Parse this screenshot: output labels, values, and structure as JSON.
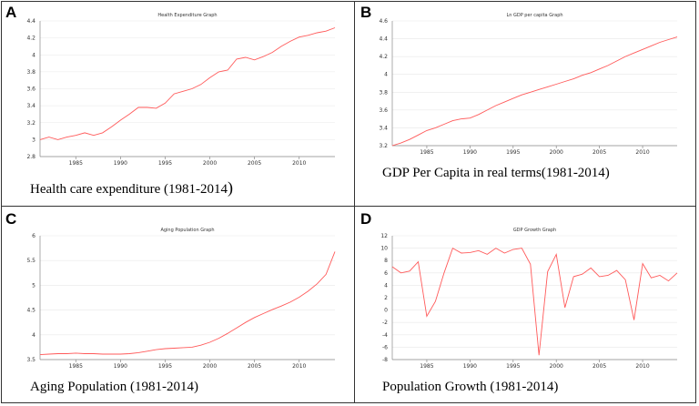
{
  "colors": {
    "line": "#ff5a5a",
    "axis": "#888888",
    "grid": "#e8e8e8",
    "border": "#333333"
  },
  "chart_data": [
    {
      "id": "A",
      "type": "line",
      "label": "A",
      "title": "Health Expenditure Graph",
      "caption_main": "Health care expenditure (1981-2014",
      "caption_tail": ")",
      "xlim": [
        1981,
        2014
      ],
      "ylim": [
        2.8,
        4.4
      ],
      "xticks": [
        1985,
        1990,
        1995,
        2000,
        2005,
        2010
      ],
      "yticks": [
        "2.8",
        "3",
        "3.2",
        "3.4",
        "3.6",
        "3.8",
        "4",
        "4.2",
        "4.4"
      ],
      "ytick_values": [
        2.8,
        3.0,
        3.2,
        3.4,
        3.6,
        3.8,
        4.0,
        4.2,
        4.4
      ],
      "x": [
        1981,
        1982,
        1983,
        1984,
        1985,
        1986,
        1987,
        1988,
        1989,
        1990,
        1991,
        1992,
        1993,
        1994,
        1995,
        1996,
        1997,
        1998,
        1999,
        2000,
        2001,
        2002,
        2003,
        2004,
        2005,
        2006,
        2007,
        2008,
        2009,
        2010,
        2011,
        2012,
        2013,
        2014
      ],
      "y": [
        3.0,
        3.03,
        3.0,
        3.03,
        3.05,
        3.08,
        3.05,
        3.08,
        3.15,
        3.23,
        3.3,
        3.38,
        3.38,
        3.37,
        3.43,
        3.54,
        3.57,
        3.6,
        3.65,
        3.73,
        3.8,
        3.82,
        3.95,
        3.97,
        3.94,
        3.98,
        4.03,
        4.1,
        4.16,
        4.21,
        4.23,
        4.26,
        4.28,
        4.32
      ]
    },
    {
      "id": "B",
      "type": "line",
      "label": "B",
      "title": "Ln GDP per capita Graph",
      "caption_main": "GDP Per Capita in real terms(1981-2014)",
      "caption_tail": "",
      "xlim": [
        1981,
        2014
      ],
      "ylim": [
        3.2,
        4.6
      ],
      "xticks": [
        1985,
        1990,
        1995,
        2000,
        2005,
        2010
      ],
      "yticks": [
        "3.2",
        "3.4",
        "3.6",
        "3.8",
        "4",
        "4.2",
        "4.4",
        "4.6"
      ],
      "ytick_values": [
        3.2,
        3.4,
        3.6,
        3.8,
        4.0,
        4.2,
        4.4,
        4.6
      ],
      "x": [
        1981,
        1982,
        1983,
        1984,
        1985,
        1986,
        1987,
        1988,
        1989,
        1990,
        1991,
        1992,
        1993,
        1994,
        1995,
        1996,
        1997,
        1998,
        1999,
        2000,
        2001,
        2002,
        2003,
        2004,
        2005,
        2006,
        2007,
        2008,
        2009,
        2010,
        2011,
        2012,
        2013,
        2014
      ],
      "y": [
        3.2,
        3.23,
        3.27,
        3.32,
        3.37,
        3.4,
        3.44,
        3.48,
        3.5,
        3.51,
        3.55,
        3.6,
        3.65,
        3.69,
        3.73,
        3.77,
        3.8,
        3.83,
        3.86,
        3.89,
        3.92,
        3.95,
        3.99,
        4.02,
        4.06,
        4.1,
        4.15,
        4.2,
        4.24,
        4.28,
        4.32,
        4.36,
        4.39,
        4.42
      ]
    },
    {
      "id": "C",
      "type": "line",
      "label": "C",
      "title": "Aging  Population Graph",
      "caption_main": "Aging Population (1981-2014)",
      "caption_tail": "",
      "xlim": [
        1981,
        2014
      ],
      "ylim": [
        3.5,
        6
      ],
      "xticks": [
        1985,
        1990,
        1995,
        2000,
        2005,
        2010
      ],
      "yticks": [
        "3.5",
        "4",
        "4.5",
        "5",
        "5.5",
        "6"
      ],
      "ytick_values": [
        3.5,
        4.0,
        4.5,
        5.0,
        5.5,
        6.0
      ],
      "x": [
        1981,
        1982,
        1983,
        1984,
        1985,
        1986,
        1987,
        1988,
        1989,
        1990,
        1991,
        1992,
        1993,
        1994,
        1995,
        1996,
        1997,
        1998,
        1999,
        2000,
        2001,
        2002,
        2003,
        2004,
        2005,
        2006,
        2007,
        2008,
        2009,
        2010,
        2011,
        2012,
        2013,
        2014
      ],
      "y": [
        3.6,
        3.61,
        3.62,
        3.62,
        3.63,
        3.62,
        3.62,
        3.61,
        3.61,
        3.61,
        3.62,
        3.64,
        3.67,
        3.7,
        3.72,
        3.73,
        3.74,
        3.75,
        3.79,
        3.85,
        3.93,
        4.03,
        4.14,
        4.25,
        4.35,
        4.43,
        4.51,
        4.58,
        4.66,
        4.76,
        4.88,
        5.03,
        5.22,
        5.68
      ]
    },
    {
      "id": "D",
      "type": "line",
      "label": "D",
      "title": "GDP Growth Graph",
      "caption_main": "Population Growth (1981-2014)",
      "caption_tail": "",
      "xlim": [
        1981,
        2014
      ],
      "ylim": [
        -8,
        12
      ],
      "xticks": [
        1985,
        1990,
        1995,
        2000,
        2005,
        2010
      ],
      "yticks": [
        "-8",
        "-6",
        "-4",
        "-2",
        "0",
        "2",
        "4",
        "6",
        "8",
        "10",
        "12"
      ],
      "ytick_values": [
        -8,
        -6,
        -4,
        -2,
        0,
        2,
        4,
        6,
        8,
        10,
        12
      ],
      "x": [
        1981,
        1982,
        1983,
        1984,
        1985,
        1986,
        1987,
        1988,
        1989,
        1990,
        1991,
        1992,
        1993,
        1994,
        1995,
        1996,
        1997,
        1998,
        1999,
        2000,
        2001,
        2002,
        2003,
        2004,
        2005,
        2006,
        2007,
        2008,
        2009,
        2010,
        2011,
        2012,
        2013,
        2014
      ],
      "y": [
        7.0,
        6.0,
        6.3,
        7.8,
        -1.0,
        1.4,
        6.0,
        10.0,
        9.2,
        9.3,
        9.6,
        9.0,
        10.0,
        9.2,
        9.8,
        10.0,
        7.4,
        -7.3,
        6.2,
        9.0,
        0.4,
        5.4,
        5.8,
        6.8,
        5.4,
        5.6,
        6.4,
        4.9,
        -1.6,
        7.5,
        5.2,
        5.6,
        4.7,
        6.0
      ]
    }
  ]
}
